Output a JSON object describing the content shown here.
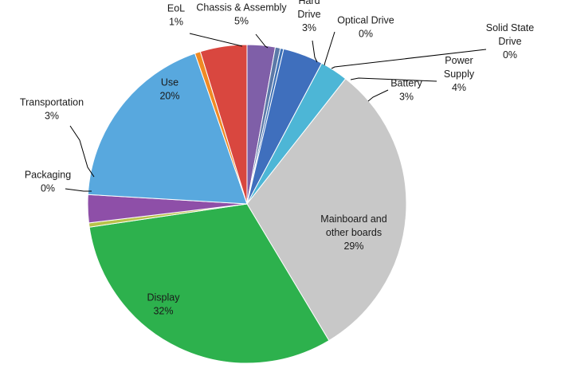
{
  "chart_data": {
    "type": "pie",
    "title": "",
    "start_angle_deg": 0,
    "direction": "clockwise",
    "slices": [
      {
        "label": [
          "Hard",
          "Drive"
        ],
        "value": 3,
        "pct_text": "3%",
        "color": "#7f5fa8"
      },
      {
        "label": [
          "Optical Drive"
        ],
        "value": 0,
        "pct_text": "0%",
        "color": "#5b79a8"
      },
      {
        "label": [
          "Solid State",
          "Drive"
        ],
        "value": 0,
        "pct_text": "0%",
        "color": "#3d70b5"
      },
      {
        "label": [
          "Power",
          "Supply"
        ],
        "value": 4,
        "pct_text": "4%",
        "color": "#3f6fbd"
      },
      {
        "label": [
          "Battery"
        ],
        "value": 3,
        "pct_text": "3%",
        "color": "#4db6d6"
      },
      {
        "label": [
          "Mainboard and",
          "other boards"
        ],
        "value": 29,
        "pct_text": "29%",
        "color": "#c8c8c8"
      },
      {
        "label": [
          "Display"
        ],
        "value": 32,
        "pct_text": "32%",
        "color": "#2db14d"
      },
      {
        "label": [
          "Packaging"
        ],
        "value": 0,
        "pct_text": "0%",
        "color": "#b8c24a"
      },
      {
        "label": [
          "Transportation"
        ],
        "value": 3,
        "pct_text": "3%",
        "color": "#8e4fa8"
      },
      {
        "label": [
          "Use"
        ],
        "value": 20,
        "pct_text": "20%",
        "color": "#58a8de"
      },
      {
        "label": [
          "EoL"
        ],
        "value": 1,
        "pct_text": "1%",
        "color": "#f08a24"
      },
      {
        "label": [
          "Chassis & Assembly"
        ],
        "value": 5,
        "pct_text": "5%",
        "color": "#d9473f"
      }
    ]
  }
}
